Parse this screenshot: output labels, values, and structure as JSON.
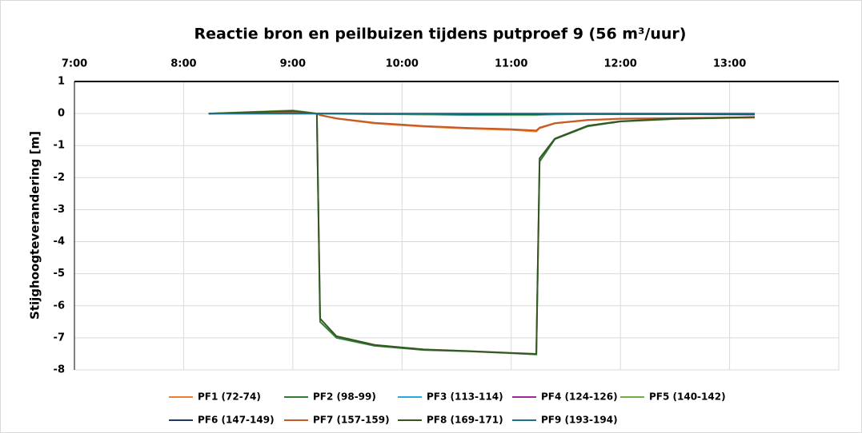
{
  "chart_data": {
    "type": "line",
    "title": "Reactie bron en peilbuizen tijdens putproef 9 (56 m³/uur)",
    "y_label": "Stijghoogteverandering [m]",
    "x": [
      8.23,
      9.0,
      9.22,
      9.25,
      9.4,
      9.75,
      10.2,
      10.6,
      11.0,
      11.23,
      11.26,
      11.4,
      11.7,
      12.0,
      12.5,
      13.23
    ],
    "xlim": [
      7,
      14
    ],
    "xticks": [
      {
        "value": 7,
        "label": "7:00"
      },
      {
        "value": 8,
        "label": "8:00"
      },
      {
        "value": 9,
        "label": "9:00"
      },
      {
        "value": 10,
        "label": "10:00"
      },
      {
        "value": 11,
        "label": "11:00"
      },
      {
        "value": 12,
        "label": "12:00"
      },
      {
        "value": 13,
        "label": "13:00"
      }
    ],
    "ylim": [
      -8,
      1
    ],
    "yticks": [
      1,
      0,
      -1,
      -2,
      -3,
      -4,
      -5,
      -6,
      -7,
      -8
    ],
    "grid": true,
    "legend": "bottom",
    "series": [
      {
        "name": "PF1 (72-74)",
        "color": "#ed7d31",
        "values": [
          0,
          0.02,
          0,
          -0.05,
          -0.16,
          -0.31,
          -0.41,
          -0.47,
          -0.51,
          -0.56,
          -0.46,
          -0.31,
          -0.21,
          -0.17,
          -0.15,
          -0.13
        ]
      },
      {
        "name": "PF2 (98-99)",
        "color": "#2e7d32",
        "values": [
          0,
          0.05,
          0,
          -6.5,
          -7.0,
          -7.25,
          -7.38,
          -7.42,
          -7.48,
          -7.52,
          -1.5,
          -0.8,
          -0.4,
          -0.25,
          -0.17,
          -0.12
        ]
      },
      {
        "name": "PF3 (113-114)",
        "color": "#29a8e0",
        "values": [
          0,
          0,
          0,
          0,
          0,
          -0.02,
          -0.03,
          -0.05,
          -0.05,
          -0.05,
          -0.04,
          -0.03,
          -0.02,
          -0.02,
          -0.02,
          -0.03
        ]
      },
      {
        "name": "PF4 (124-126)",
        "color": "#a0279a",
        "values": [
          0,
          0,
          0,
          0,
          0,
          -0.01,
          -0.02,
          -0.03,
          -0.03,
          -0.03,
          -0.03,
          -0.02,
          -0.02,
          -0.02,
          -0.02,
          -0.03
        ]
      },
      {
        "name": "PF5 (140-142)",
        "color": "#70ad47",
        "values": [
          0,
          0.1,
          0,
          0,
          -0.01,
          -0.02,
          -0.03,
          -0.03,
          -0.04,
          -0.04,
          -0.03,
          -0.02,
          -0.02,
          -0.01,
          -0.01,
          -0.02
        ]
      },
      {
        "name": "PF6 (147-149)",
        "color": "#1f3864",
        "values": [
          0,
          0.02,
          0,
          0,
          0,
          -0.01,
          -0.01,
          -0.02,
          -0.02,
          -0.02,
          -0.02,
          -0.01,
          -0.01,
          -0.01,
          -0.01,
          -0.02
        ]
      },
      {
        "name": "PF7 (157-159)",
        "color": "#c05a28",
        "values": [
          0,
          0.02,
          0,
          -0.05,
          -0.15,
          -0.29,
          -0.39,
          -0.45,
          -0.49,
          -0.53,
          -0.44,
          -0.3,
          -0.2,
          -0.16,
          -0.14,
          -0.12
        ]
      },
      {
        "name": "PF8 (169-171)",
        "color": "#375623",
        "values": [
          0,
          0.08,
          0,
          -6.4,
          -6.95,
          -7.22,
          -7.36,
          -7.41,
          -7.47,
          -7.5,
          -1.4,
          -0.78,
          -0.38,
          -0.24,
          -0.16,
          -0.11
        ]
      },
      {
        "name": "PF9 (193-194)",
        "color": "#1f6f8b",
        "values": [
          0,
          0,
          0,
          0,
          0,
          0,
          0,
          0,
          0,
          0,
          0,
          0,
          0,
          0,
          0,
          0
        ]
      }
    ]
  }
}
